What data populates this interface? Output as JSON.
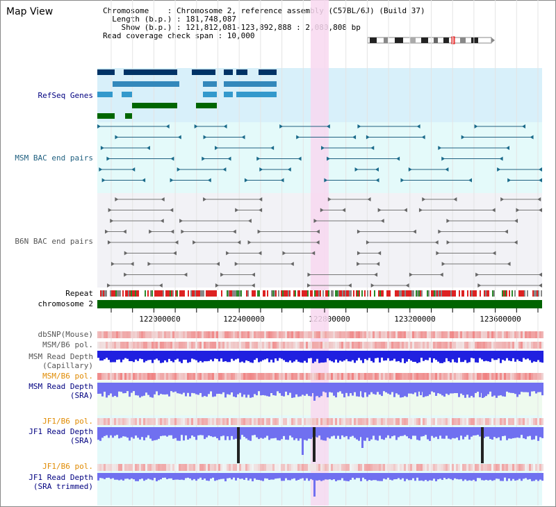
{
  "app": {
    "title": "Map View"
  },
  "header": {
    "chromosome_line": "Chromosome    : Chromosome 2, reference assembly (C57BL/6J) (Build 37)",
    "length_line": "  Length (b.p.) : 181,748,087",
    "show_line": "    Show (b.p.) : 121,812,081-123,892,888 : 2,080,808 bp",
    "coverage_line": "Read coverage check span : 10,000"
  },
  "tracks": {
    "refseq": "RefSeq Genes",
    "msm_bac": "MSM BAC end pairs",
    "b6n_bac": "B6N BAC end pairs",
    "repeat": "Repeat",
    "chromosome": "chromosome 2",
    "dbsnp": "dbSNP(Mouse)",
    "msm_b6_pol_1": "MSM/B6 pol.",
    "msm_read_depth_cap_1": "MSM Read Depth",
    "msm_read_depth_cap_2": "(Capillary)",
    "msm_b6_pol_2": "MSM/B6 pol.",
    "msm_read_depth_sra_1": "MSM Read Depth",
    "msm_read_depth_sra_2": "(SRA)",
    "jf1_b6_pol_1": "JF1/B6 pol.",
    "jf1_read_depth_sra_1": "JF1 Read Depth",
    "jf1_read_depth_sra_2": "(SRA)",
    "jf1_b6_pol_2": "JF1/B6 pol.",
    "jf1_read_depth_trim_1": "JF1 Read Depth",
    "jf1_read_depth_trim_2": "(SRA trimmed)"
  },
  "axis": {
    "ticks": [
      "122000000",
      "122400000",
      "122800000",
      "123200000",
      "123600000"
    ]
  },
  "colors": {
    "highlight": "#f8d8f0",
    "refseq_bg": "#d8f0fa",
    "msm_bg": "#e4fafa",
    "b6n_bg": "#f2f2f6",
    "chrom_green": "#006400",
    "depth_blue": "#2020e0",
    "depth_sra": "#7070f0",
    "pol_red": "#e03030"
  }
}
